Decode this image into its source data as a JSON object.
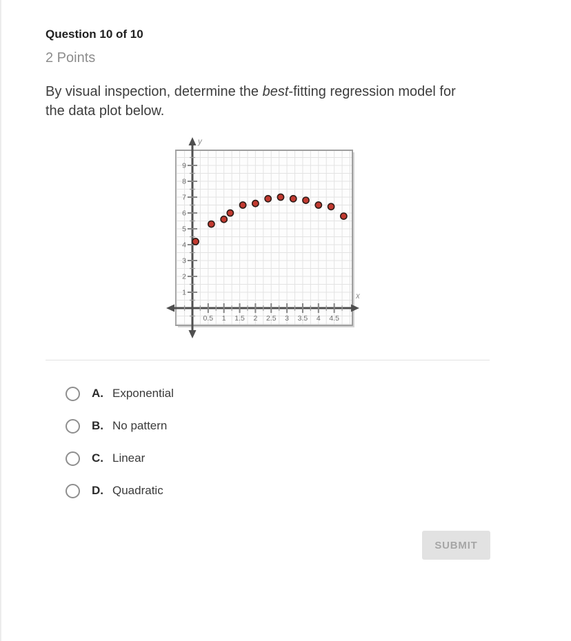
{
  "header": {
    "question_counter": "Question 10 of 10",
    "points": "2 Points"
  },
  "question": {
    "part1": "By visual inspection, determine the ",
    "italic": "best",
    "part2": "-fitting regression model for the data plot below."
  },
  "chart_data": {
    "type": "scatter",
    "x": [
      0.1,
      0.6,
      1.0,
      1.2,
      1.6,
      2.0,
      2.4,
      2.8,
      3.2,
      3.6,
      4.0,
      4.4,
      4.8
    ],
    "y": [
      4.2,
      5.3,
      5.6,
      6.0,
      6.5,
      6.6,
      6.9,
      7.0,
      6.9,
      6.8,
      6.5,
      6.4,
      5.8
    ],
    "xlabel": "x",
    "ylabel": "y",
    "x_tick_labels": [
      "0.5",
      "1",
      "1.5",
      "2",
      "2.5",
      "3",
      "3.5",
      "4",
      "4.5"
    ],
    "y_tick_labels": [
      "1",
      "2",
      "3",
      "4",
      "5",
      "6",
      "7",
      "8",
      "9"
    ],
    "x_major_step": 0.5,
    "x_minor_step": 0.25,
    "y_major_step": 1,
    "y_minor_step": 0.5,
    "xlim": [
      -0.55,
      5.1
    ],
    "ylim": [
      -1.2,
      10.0
    ],
    "grid": true,
    "legend": "none",
    "title": "",
    "colors": {
      "point_fill": "#c23a30",
      "point_stroke": "#2e1b17",
      "axis": "#4f4f4f",
      "grid": "#e3e3e3",
      "box_border": "#9e9e9e",
      "box_shadow": "#d4d4d4",
      "plot_bg": "#fdfdfd",
      "tick_major": "#868686",
      "tick_minor": "#9f9f9f",
      "tick_label": "#6b6b6b",
      "axis_letter": "#8a8a8a"
    }
  },
  "options": [
    {
      "letter": "A.",
      "label": "Exponential"
    },
    {
      "letter": "B.",
      "label": "No pattern"
    },
    {
      "letter": "C.",
      "label": "Linear"
    },
    {
      "letter": "D.",
      "label": "Quadratic"
    }
  ],
  "submit": {
    "label": "SUBMIT"
  }
}
